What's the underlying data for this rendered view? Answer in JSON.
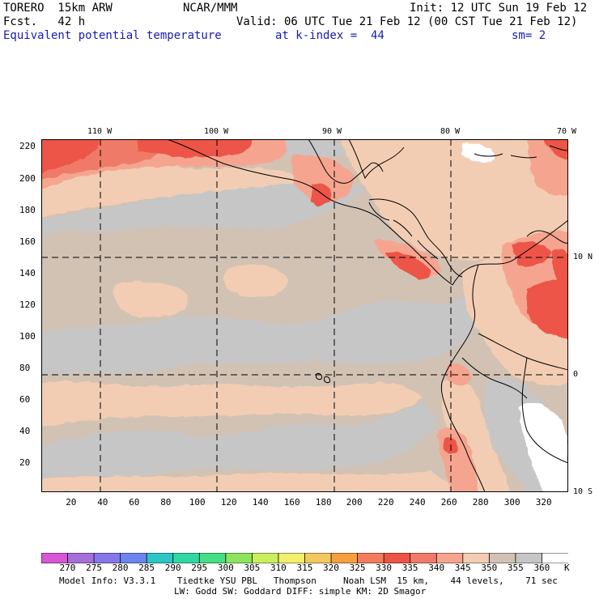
{
  "header": {
    "model": "TORERO  15km ARW",
    "center": "NCAR/MMM",
    "init": "Init: 12 UTC Sun 19 Feb 12",
    "fcst": "Fcst.   42 h",
    "valid": "Valid: 06 UTC Tue 21 Feb 12 (00 CST Tue 21 Feb 12)",
    "field": "Equivalent potential temperature",
    "level": "at k-index =  44",
    "smooth": "sm= 2"
  },
  "map": {
    "lon_labels": [
      "110 W",
      "100 W",
      "90 W",
      "80 W",
      "70 W"
    ],
    "lat_labels": [
      "10 N",
      "0",
      "10 S"
    ],
    "y_ticks": [
      "220",
      "200",
      "180",
      "160",
      "140",
      "120",
      "100",
      "80",
      "60",
      "40",
      "20"
    ],
    "x_ticks": [
      "20",
      "40",
      "60",
      "80",
      "100",
      "120",
      "140",
      "160",
      "180",
      "200",
      "220",
      "240",
      "260",
      "280",
      "300",
      "320"
    ],
    "colors": {
      "bg": "#d2c2b4",
      "gray": "#c6c6c6",
      "peach": "#f2cdb4",
      "salmon": "#f5a58f",
      "coral": "#f07a68",
      "red": "#ec5446",
      "white": "#ffffff"
    }
  },
  "colorbar": {
    "labels": [
      "270",
      "275",
      "280",
      "285",
      "290",
      "295",
      "300",
      "305",
      "310",
      "315",
      "320",
      "325",
      "330",
      "335",
      "340",
      "345",
      "350",
      "355",
      "360"
    ],
    "unit": "K",
    "colors": [
      "#d756d6",
      "#a56fd9",
      "#8478e8",
      "#6c84ee",
      "#2cc6c6",
      "#2fd8a4",
      "#45de86",
      "#8be45c",
      "#c9ee5e",
      "#f0f06e",
      "#f3c85e",
      "#f5a040",
      "#f27c5c",
      "#ec5446",
      "#f07a68",
      "#f5a58f",
      "#f2cdb4",
      "#d2c2b4",
      "#c6c6c6",
      "#ffffff"
    ]
  },
  "footer": {
    "line1": "Model Info: V3.3.1    Tiedtke YSU PBL   Thompson     Noah LSM  15 km,    44 levels,    71 sec",
    "line2": "LW: Godd SW: Goddard DIFF: simple KM: 2D Smagor"
  }
}
